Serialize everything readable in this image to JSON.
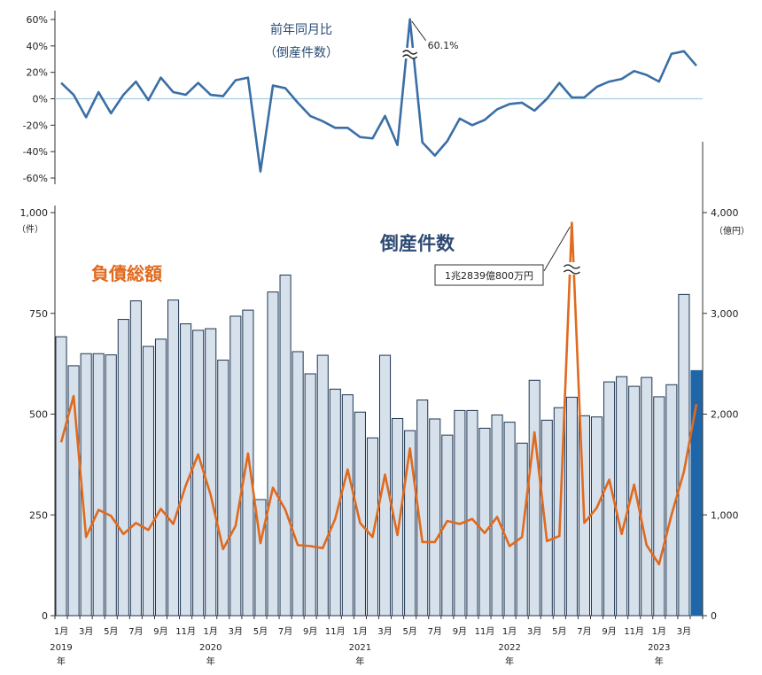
{
  "chart_data": [
    {
      "type": "line",
      "title": "前年同月比",
      "subtitle": "（倒産件数）",
      "y_tick_labels": [
        "60%",
        "40%",
        "20%",
        "0%",
        "-20%",
        "-40%",
        "-60%"
      ],
      "ylim": [
        -60,
        60
      ],
      "peak_annotation": "60.1%",
      "color": "#3a6ea5",
      "values": [
        12,
        3,
        -14,
        5,
        -11,
        3,
        13,
        -1,
        16,
        5,
        3,
        12,
        3,
        2,
        14,
        16,
        -55,
        10,
        8,
        -3,
        -13,
        -17,
        -22,
        -22,
        -29,
        -30,
        -13,
        -35,
        60.1,
        -33,
        -43,
        -32,
        -15,
        -20,
        -16,
        -8,
        -4,
        -3,
        -9,
        0,
        12,
        1,
        1,
        9,
        13,
        15,
        21,
        18,
        13,
        34,
        36,
        25
      ]
    },
    {
      "type": "bar",
      "title": "倒産件数",
      "left_axis": {
        "unit": "（件）",
        "tick_labels": [
          "1,000",
          "750",
          "500",
          "250",
          "0"
        ],
        "ylim": [
          0,
          1000
        ]
      },
      "right_axis": {
        "unit": "（億円）",
        "tick_labels": [
          "4,000",
          "3,000",
          "2,000",
          "1,000",
          "0"
        ],
        "ylim": [
          0,
          4000
        ]
      },
      "x_tick_labels": [
        "1月",
        "3月",
        "5月",
        "7月",
        "9月",
        "11月",
        "1月",
        "3月",
        "5月",
        "7月",
        "9月",
        "11月",
        "1月",
        "3月",
        "5月",
        "7月",
        "9月",
        "11月",
        "1月",
        "3月",
        "5月",
        "7月",
        "9月",
        "11月",
        "1月",
        "3月"
      ],
      "year_labels": [
        {
          "text": "2019",
          "suffix": "年",
          "index": 0
        },
        {
          "text": "2020",
          "suffix": "年",
          "index": 12
        },
        {
          "text": "2021",
          "suffix": "年",
          "index": 24
        },
        {
          "text": "2022",
          "suffix": "年",
          "index": 36
        },
        {
          "text": "2023",
          "suffix": "年",
          "index": 48
        }
      ],
      "bar_color": "#d6e1ec",
      "bar_border": "#1f3550",
      "highlight_color": "#1f66a8",
      "bars": [
        692,
        620,
        650,
        650,
        647,
        735,
        781,
        668,
        686,
        783,
        724,
        708,
        712,
        634,
        743,
        758,
        288,
        803,
        845,
        655,
        600,
        646,
        562,
        548,
        505,
        441,
        646,
        489,
        459,
        535,
        488,
        448,
        509,
        509,
        465,
        498,
        480,
        428,
        584,
        485,
        516,
        542,
        496,
        493,
        580,
        593,
        569,
        591,
        543,
        573,
        797,
        608
      ],
      "line_series": {
        "name": "負債総額",
        "color": "#e06a1e",
        "values": [
          1720,
          2180,
          780,
          1050,
          990,
          810,
          920,
          850,
          1060,
          910,
          1290,
          1600,
          1200,
          660,
          890,
          1610,
          720,
          1270,
          1050,
          700,
          690,
          670,
          960,
          1450,
          920,
          780,
          1400,
          800,
          1660,
          730,
          730,
          940,
          910,
          960,
          820,
          980,
          690,
          780,
          1820,
          740,
          790,
          3900,
          920,
          1070,
          1350,
          810,
          1300,
          700,
          510,
          1000,
          1430,
          2100
        ],
        "annotation": "1兆2839億800万円"
      }
    }
  ]
}
